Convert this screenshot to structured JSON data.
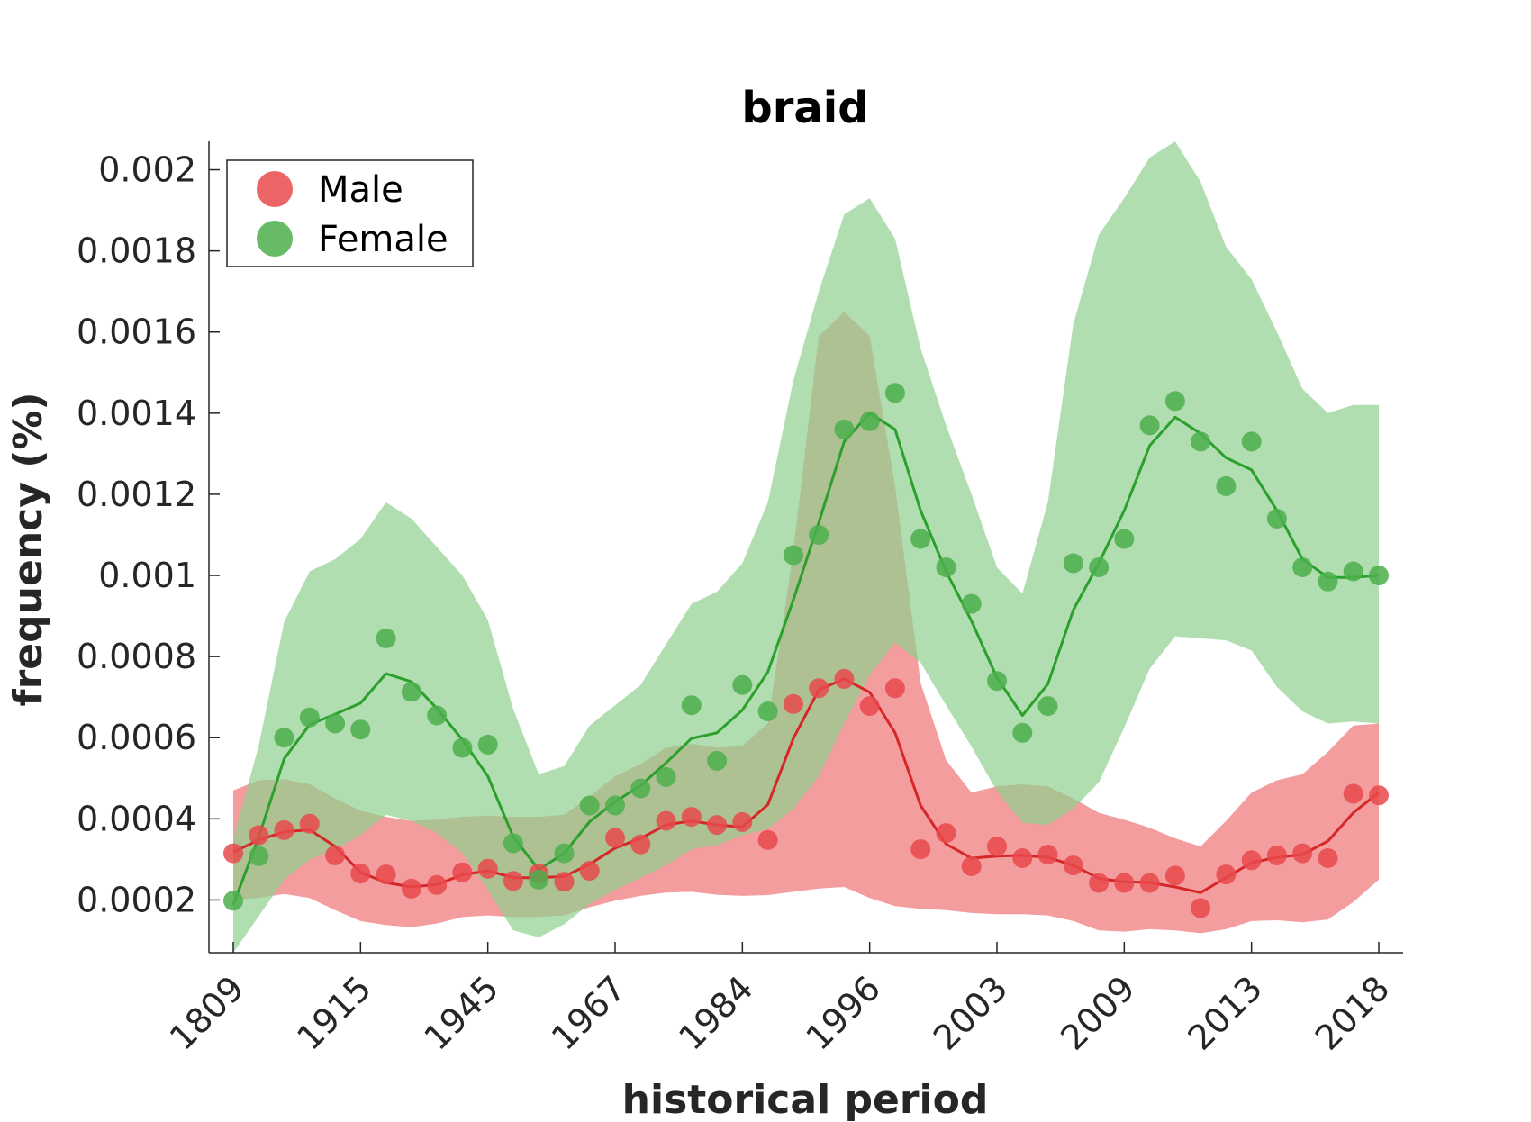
{
  "chart_data": {
    "type": "line",
    "title": "braid",
    "xlabel": "historical period",
    "ylabel": "frequency (%)",
    "x_tick_labels": [
      "1809",
      "1915",
      "1945",
      "1967",
      "1984",
      "1996",
      "2003",
      "2009",
      "2013",
      "2018"
    ],
    "y_ticks": [
      0.0002,
      0.0004,
      0.0006,
      0.0008,
      0.001,
      0.0012,
      0.0014,
      0.0016,
      0.0018,
      0.002
    ],
    "y_tick_labels": [
      "0.0002",
      "0.0004",
      "0.0006",
      "0.0008",
      "0.001",
      "0.0012",
      "0.0014",
      "0.0016",
      "0.0018",
      "0.002"
    ],
    "ylim": [
      7e-05,
      0.00207
    ],
    "grid": false,
    "legend_position": "top-left",
    "series": [
      {
        "name": "Male",
        "color": "#d62728",
        "point_color": "#e8494b",
        "band_color": "#ef7476",
        "points": [
          0.000315,
          0.00036,
          0.000372,
          0.000388,
          0.00031,
          0.000265,
          0.000263,
          0.000228,
          0.000237,
          0.000268,
          0.000277,
          0.000247,
          0.000265,
          0.000245,
          0.000272,
          0.000353,
          0.000337,
          0.000395,
          0.000405,
          0.000385,
          0.000392,
          0.000348,
          0.000683,
          0.000722,
          0.000745,
          0.000678,
          0.000722,
          0.000325,
          0.000365,
          0.000283,
          0.000332,
          0.000303,
          0.000312,
          0.000285,
          0.000242,
          0.000242,
          0.000242,
          0.00026,
          0.00018,
          0.000263,
          0.000298,
          0.00031,
          0.000315,
          0.000303,
          0.000462,
          0.000458
        ],
        "line": [
          0.000318,
          0.000348,
          0.000368,
          0.000373,
          0.000332,
          0.000268,
          0.000243,
          0.000232,
          0.000238,
          0.000262,
          0.000272,
          0.000255,
          0.000255,
          0.000258,
          0.000288,
          0.000328,
          0.000352,
          0.000385,
          0.000395,
          0.000385,
          0.00038,
          0.000435,
          0.000598,
          0.000718,
          0.000745,
          0.000712,
          0.000612,
          0.000433,
          0.000338,
          0.000303,
          0.000308,
          0.00031,
          0.000305,
          0.000285,
          0.000253,
          0.000245,
          0.000243,
          0.000232,
          0.000218,
          0.000255,
          0.000292,
          0.000305,
          0.000312,
          0.000345,
          0.000415,
          0.000465
        ],
        "upper": [
          0.00047,
          0.000495,
          0.000498,
          0.000485,
          0.00045,
          0.00042,
          0.000405,
          0.000395,
          0.000398,
          0.000405,
          0.000408,
          0.000405,
          0.000405,
          0.00041,
          0.000455,
          0.000505,
          0.000535,
          0.000575,
          0.000585,
          0.000575,
          0.00058,
          0.000635,
          0.00106,
          0.00159,
          0.00165,
          0.00159,
          0.00122,
          0.000735,
          0.000545,
          0.000465,
          0.00048,
          0.000485,
          0.00048,
          0.00045,
          0.000415,
          0.000398,
          0.000378,
          0.000352,
          0.000332,
          0.000395,
          0.000465,
          0.000495,
          0.00051,
          0.000565,
          0.00063,
          0.000635
        ],
        "lower": [
          0.0002,
          0.000205,
          0.000215,
          0.000205,
          0.000175,
          0.000148,
          0.000138,
          0.000133,
          0.000142,
          0.000158,
          0.000162,
          0.000158,
          0.000158,
          0.000162,
          0.000182,
          0.000198,
          0.00021,
          0.000218,
          0.00022,
          0.000213,
          0.00021,
          0.000212,
          0.00022,
          0.000228,
          0.000232,
          0.000205,
          0.000185,
          0.000178,
          0.000175,
          0.000168,
          0.000165,
          0.000165,
          0.000162,
          0.000148,
          0.000125,
          0.000122,
          0.000128,
          0.000125,
          0.000118,
          0.000128,
          0.000148,
          0.00015,
          0.000145,
          0.000152,
          0.000195,
          0.00025
        ]
      },
      {
        "name": "Female",
        "color": "#2ca02c",
        "point_color": "#4caf4c",
        "band_color": "#8fd08f",
        "points": [
          0.000198,
          0.000308,
          0.0006,
          0.00065,
          0.000635,
          0.00062,
          0.000845,
          0.000713,
          0.000655,
          0.000575,
          0.000583,
          0.00034,
          0.00025,
          0.000315,
          0.000433,
          0.000433,
          0.000475,
          0.000503,
          0.00068,
          0.000543,
          0.00073,
          0.000665,
          0.00105,
          0.0011,
          0.00136,
          0.00138,
          0.00145,
          0.00109,
          0.00102,
          0.00093,
          0.00074,
          0.000612,
          0.000678,
          0.00103,
          0.00102,
          0.00109,
          0.00137,
          0.00143,
          0.00133,
          0.00122,
          0.00133,
          0.00114,
          0.00102,
          0.000985,
          0.00101,
          0.001
        ],
        "line": [
          0.000188,
          0.000355,
          0.000548,
          0.000632,
          0.000658,
          0.000685,
          0.000758,
          0.000738,
          0.000672,
          0.000595,
          0.000505,
          0.000355,
          0.000275,
          0.000315,
          0.000393,
          0.000442,
          0.000482,
          0.000538,
          0.000598,
          0.000612,
          0.000668,
          0.000762,
          0.00094,
          0.00113,
          0.00133,
          0.0014,
          0.00136,
          0.00116,
          0.00101,
          0.000888,
          0.000748,
          0.000655,
          0.000732,
          0.000915,
          0.00103,
          0.00116,
          0.00132,
          0.00139,
          0.00135,
          0.00129,
          0.00126,
          0.00116,
          0.00104,
          0.000995,
          0.000995,
          0.001
        ],
        "upper": [
          0.00035,
          0.00058,
          0.000885,
          0.00101,
          0.00104,
          0.00109,
          0.00118,
          0.00114,
          0.00107,
          0.001,
          0.00089,
          0.00067,
          0.00051,
          0.00053,
          0.00063,
          0.00068,
          0.00073,
          0.00083,
          0.00093,
          0.00096,
          0.00103,
          0.00118,
          0.00148,
          0.0017,
          0.00189,
          0.00193,
          0.00183,
          0.00156,
          0.00137,
          0.0012,
          0.00102,
          0.000955,
          0.00118,
          0.00162,
          0.00184,
          0.00193,
          0.00203,
          0.00207,
          0.00197,
          0.00181,
          0.00173,
          0.0016,
          0.00146,
          0.0014,
          0.00142,
          0.00142
        ],
        "lower": [
          7e-05,
          0.00016,
          0.00025,
          0.0003,
          0.000325,
          0.00036,
          0.00041,
          0.000395,
          0.000365,
          0.000315,
          0.000225,
          0.000125,
          0.000108,
          0.00014,
          0.00019,
          0.000225,
          0.000255,
          0.000285,
          0.000325,
          0.000335,
          0.00036,
          0.000375,
          0.000425,
          0.000505,
          0.000635,
          0.000755,
          0.000835,
          0.000785,
          0.00068,
          0.000578,
          0.000468,
          0.00039,
          0.000385,
          0.000425,
          0.00049,
          0.000625,
          0.00077,
          0.00085,
          0.000845,
          0.00084,
          0.000815,
          0.000725,
          0.000665,
          0.000635,
          0.00064,
          0.000635
        ]
      }
    ]
  }
}
